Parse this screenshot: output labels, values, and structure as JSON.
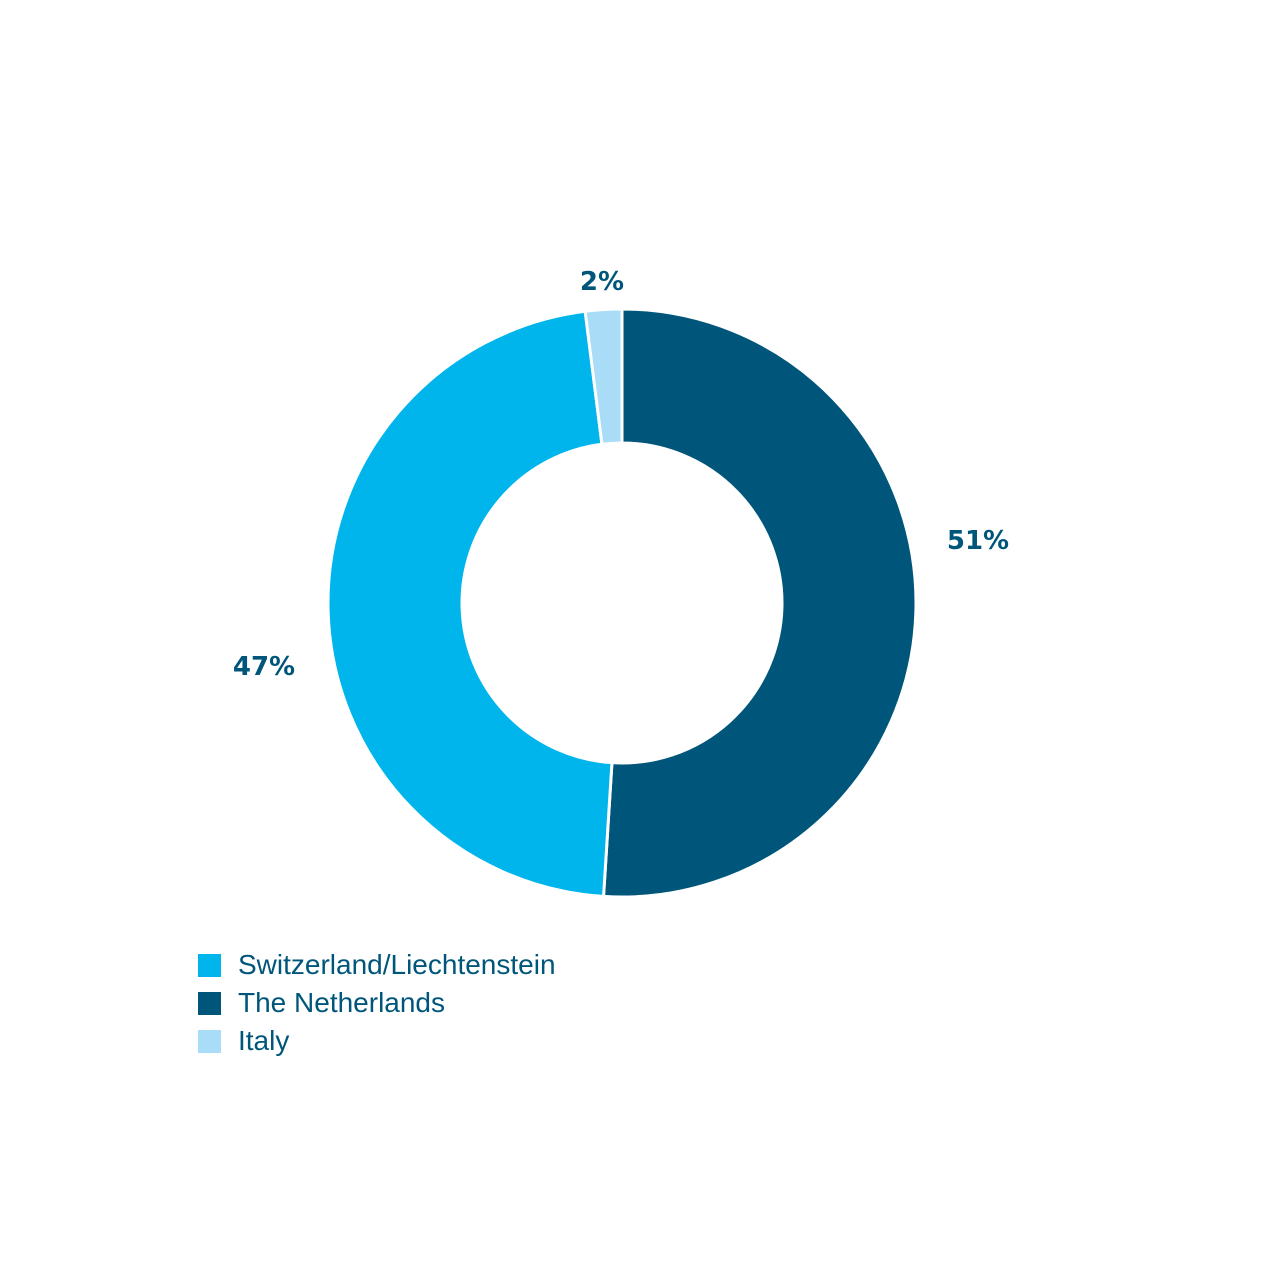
{
  "chart_data": {
    "type": "pie",
    "donut": true,
    "start": "top",
    "direction": "clockwise",
    "slices": [
      {
        "name": "The Netherlands",
        "value": 51,
        "label": "51%",
        "color": "#00567a"
      },
      {
        "name": "Switzerland/Liechtenstein",
        "value": 47,
        "label": "47%",
        "color": "#00b5ec"
      },
      {
        "name": "Italy",
        "value": 2,
        "label": "2%",
        "color": "#a9dcf7"
      }
    ],
    "legend": {
      "placement": "bottom-left",
      "entries": [
        {
          "label": "Switzerland/Liechtenstein",
          "color": "#00b5ec"
        },
        {
          "label": "The Netherlands",
          "color": "#00567a"
        },
        {
          "label": "Italy",
          "color": "#a9dcf7"
        }
      ]
    },
    "label_color": "#00567a"
  }
}
